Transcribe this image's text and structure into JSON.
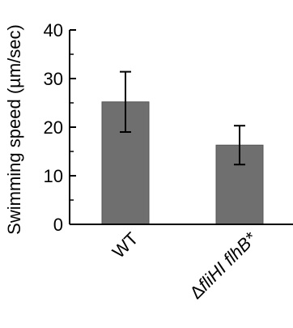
{
  "chart_data": {
    "type": "bar",
    "title": "",
    "xlabel": "",
    "ylabel": "Swimming speed (µm/sec)",
    "ylim": [
      0,
      40
    ],
    "y_ticks": [
      "0",
      "10",
      "20",
      "30",
      "40"
    ],
    "grid": false,
    "categories": [
      {
        "label": "WT",
        "prefix": "",
        "italic": ""
      },
      {
        "label": "ΔfliHI flhB*",
        "prefix": "Δ",
        "italic": "fliHI flhB*"
      }
    ],
    "values": [
      25.2,
      16.3
    ],
    "errors": [
      6.2,
      4.0
    ],
    "colors": {
      "bar": "#6f6f6f",
      "bar_edge": "#555555",
      "axis": "#000000",
      "error": "#000000"
    }
  }
}
